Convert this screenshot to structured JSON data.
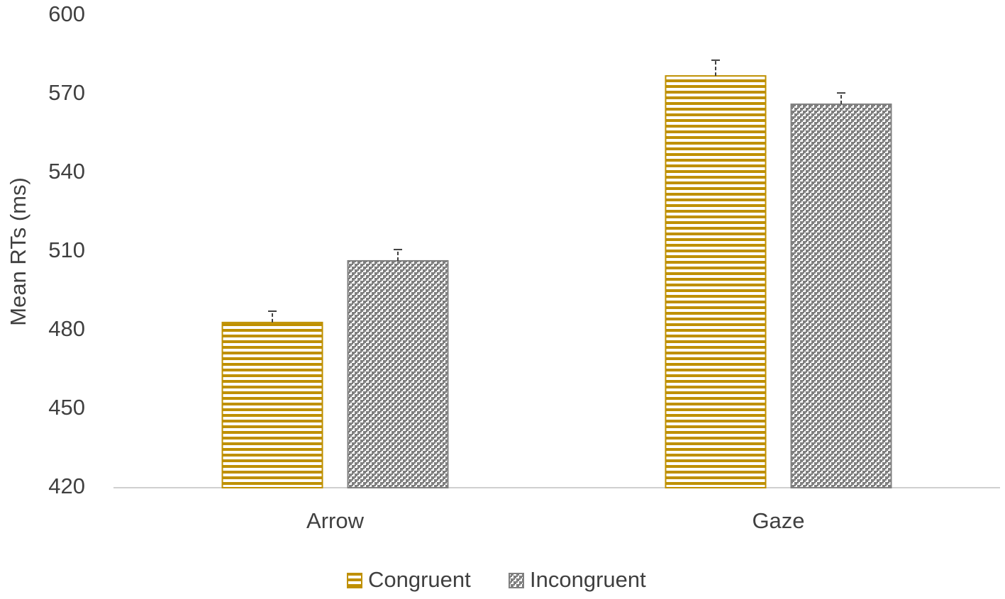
{
  "chart_data": {
    "type": "bar",
    "y_label": "Mean RTs (ms)",
    "categories": [
      "Arrow",
      "Gaze"
    ],
    "series": [
      {
        "name": "Congruent",
        "color": "#bf9000",
        "pattern": "stripes",
        "values": [
          483,
          577
        ],
        "errors": [
          4.3,
          6
        ]
      },
      {
        "name": "Incongruent",
        "color": "#7f7f7f",
        "pattern": "checker",
        "values": [
          506.5,
          566.2
        ],
        "errors": [
          4.3,
          4.3
        ]
      }
    ],
    "ylim": [
      420,
      600
    ],
    "yticks": [
      420,
      450,
      480,
      510,
      540,
      570,
      600
    ],
    "grid": false,
    "legend": "bottom"
  }
}
